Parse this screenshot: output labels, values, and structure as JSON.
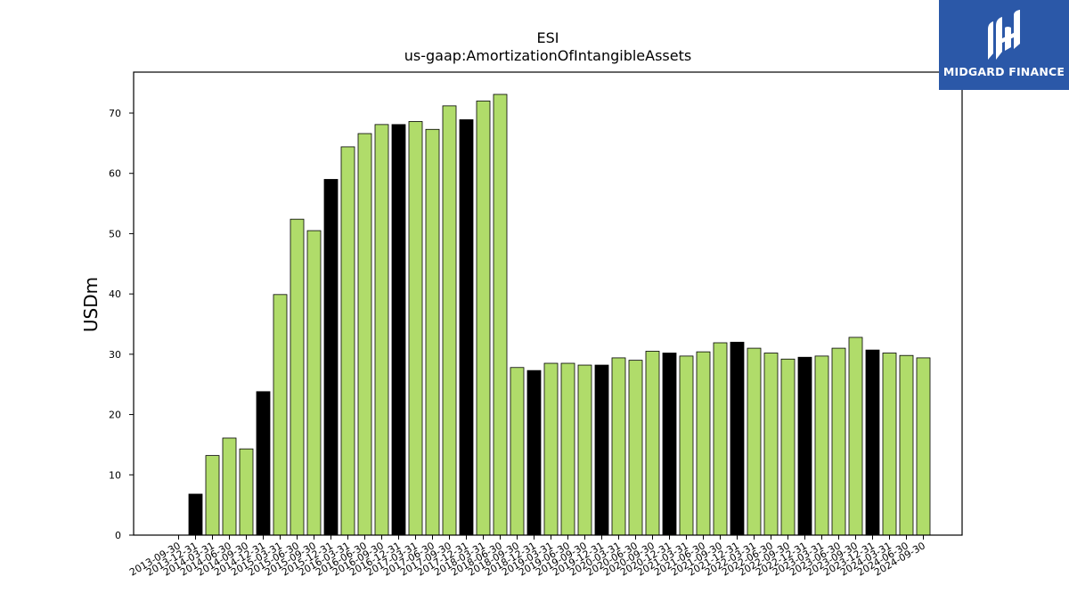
{
  "chart_data": {
    "type": "bar",
    "title": "ESI",
    "subtitle": "us-gaap:AmortizationOfIntangibleAssets",
    "xlabel": "",
    "ylabel": "USDm",
    "ylim": [
      0,
      77
    ],
    "yticks": [
      0,
      10,
      20,
      30,
      40,
      50,
      60,
      70
    ],
    "grid": false,
    "categories": [
      "2013-09-30",
      "2013-12-31",
      "2014-03-31",
      "2014-06-30",
      "2014-09-30",
      "2014-12-31",
      "2015-03-31",
      "2015-06-30",
      "2015-09-30",
      "2015-12-31",
      "2016-03-31",
      "2016-06-30",
      "2016-09-30",
      "2016-12-31",
      "2017-03-31",
      "2017-06-30",
      "2017-09-30",
      "2017-12-31",
      "2018-03-31",
      "2018-06-30",
      "2018-09-30",
      "2018-12-31",
      "2019-03-31",
      "2019-06-30",
      "2019-09-30",
      "2019-12-31",
      "2020-03-31",
      "2020-06-30",
      "2020-09-30",
      "2020-12-31",
      "2021-03-31",
      "2021-06-30",
      "2021-09-30",
      "2021-12-31",
      "2022-03-31",
      "2022-06-30",
      "2022-09-30",
      "2022-12-31",
      "2023-03-31",
      "2023-06-30",
      "2023-09-30",
      "2023-12-31",
      "2024-03-31",
      "2024-06-30",
      "2024-09-30"
    ],
    "values": [
      null,
      6.8,
      13.2,
      16.1,
      14.3,
      23.8,
      39.9,
      52.4,
      50.5,
      59.0,
      64.4,
      66.6,
      68.1,
      68.1,
      68.6,
      67.3,
      71.2,
      68.9,
      72.0,
      73.1,
      27.8,
      27.3,
      28.5,
      28.5,
      28.2,
      28.2,
      29.4,
      29.0,
      30.5,
      30.2,
      29.7,
      30.4,
      31.9,
      32.0,
      31.0,
      30.2,
      29.2,
      29.5,
      29.7,
      31.0,
      32.8,
      30.7,
      30.2,
      29.8,
      29.4
    ],
    "bar_types": [
      "",
      "q4",
      "q",
      "q",
      "q",
      "q4",
      "q",
      "q",
      "q",
      "q4",
      "q",
      "q",
      "q",
      "q4",
      "q",
      "q",
      "q",
      "q4",
      "q",
      "q",
      "q",
      "q4",
      "q",
      "q",
      "q",
      "q4",
      "q",
      "q",
      "q",
      "q4",
      "q",
      "q",
      "q",
      "q4",
      "q",
      "q",
      "q",
      "q4",
      "q",
      "q",
      "q",
      "q4",
      "q",
      "q",
      "q"
    ],
    "colors": {
      "quarter": "#b0dc6a",
      "fiscal_year_end": "#000000",
      "bar_edge": "#000000",
      "axis": "#000000"
    }
  },
  "brand": {
    "name": "MIDGARD FINANCE",
    "color": "#2b58a8",
    "logo_icon": "midgard-m-logo-icon"
  }
}
